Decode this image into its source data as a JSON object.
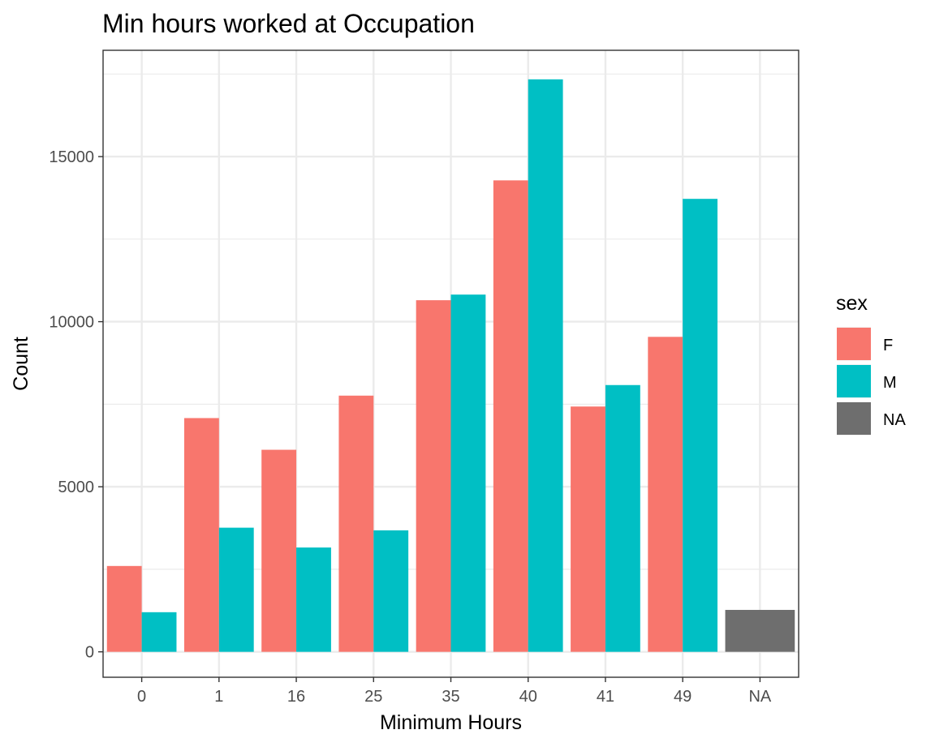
{
  "chart_data": {
    "type": "bar",
    "title": "Min hours worked at Occupation",
    "xlabel": "Minimum Hours",
    "ylabel": "Count",
    "categories": [
      "0",
      "1",
      "16",
      "25",
      "35",
      "40",
      "41",
      "49",
      "NA"
    ],
    "series": [
      {
        "name": "F",
        "values": [
          2600,
          7080,
          6120,
          7760,
          10650,
          14280,
          7430,
          9540,
          null
        ]
      },
      {
        "name": "M",
        "values": [
          1200,
          3760,
          3160,
          3680,
          10820,
          17340,
          8080,
          13720,
          null
        ]
      },
      {
        "name": "NA",
        "values": [
          null,
          null,
          null,
          null,
          null,
          null,
          null,
          null,
          1270
        ]
      }
    ],
    "ylim": [
      -770,
      18220
    ],
    "yticks": [
      0,
      5000,
      10000,
      15000
    ],
    "grid": true,
    "legend": {
      "title": "sex",
      "position": "right",
      "entries": [
        "F",
        "M",
        "NA"
      ]
    },
    "colors": {
      "F": "#F8766D",
      "M": "#00BFC4",
      "NA": "#6E6E6E"
    }
  }
}
